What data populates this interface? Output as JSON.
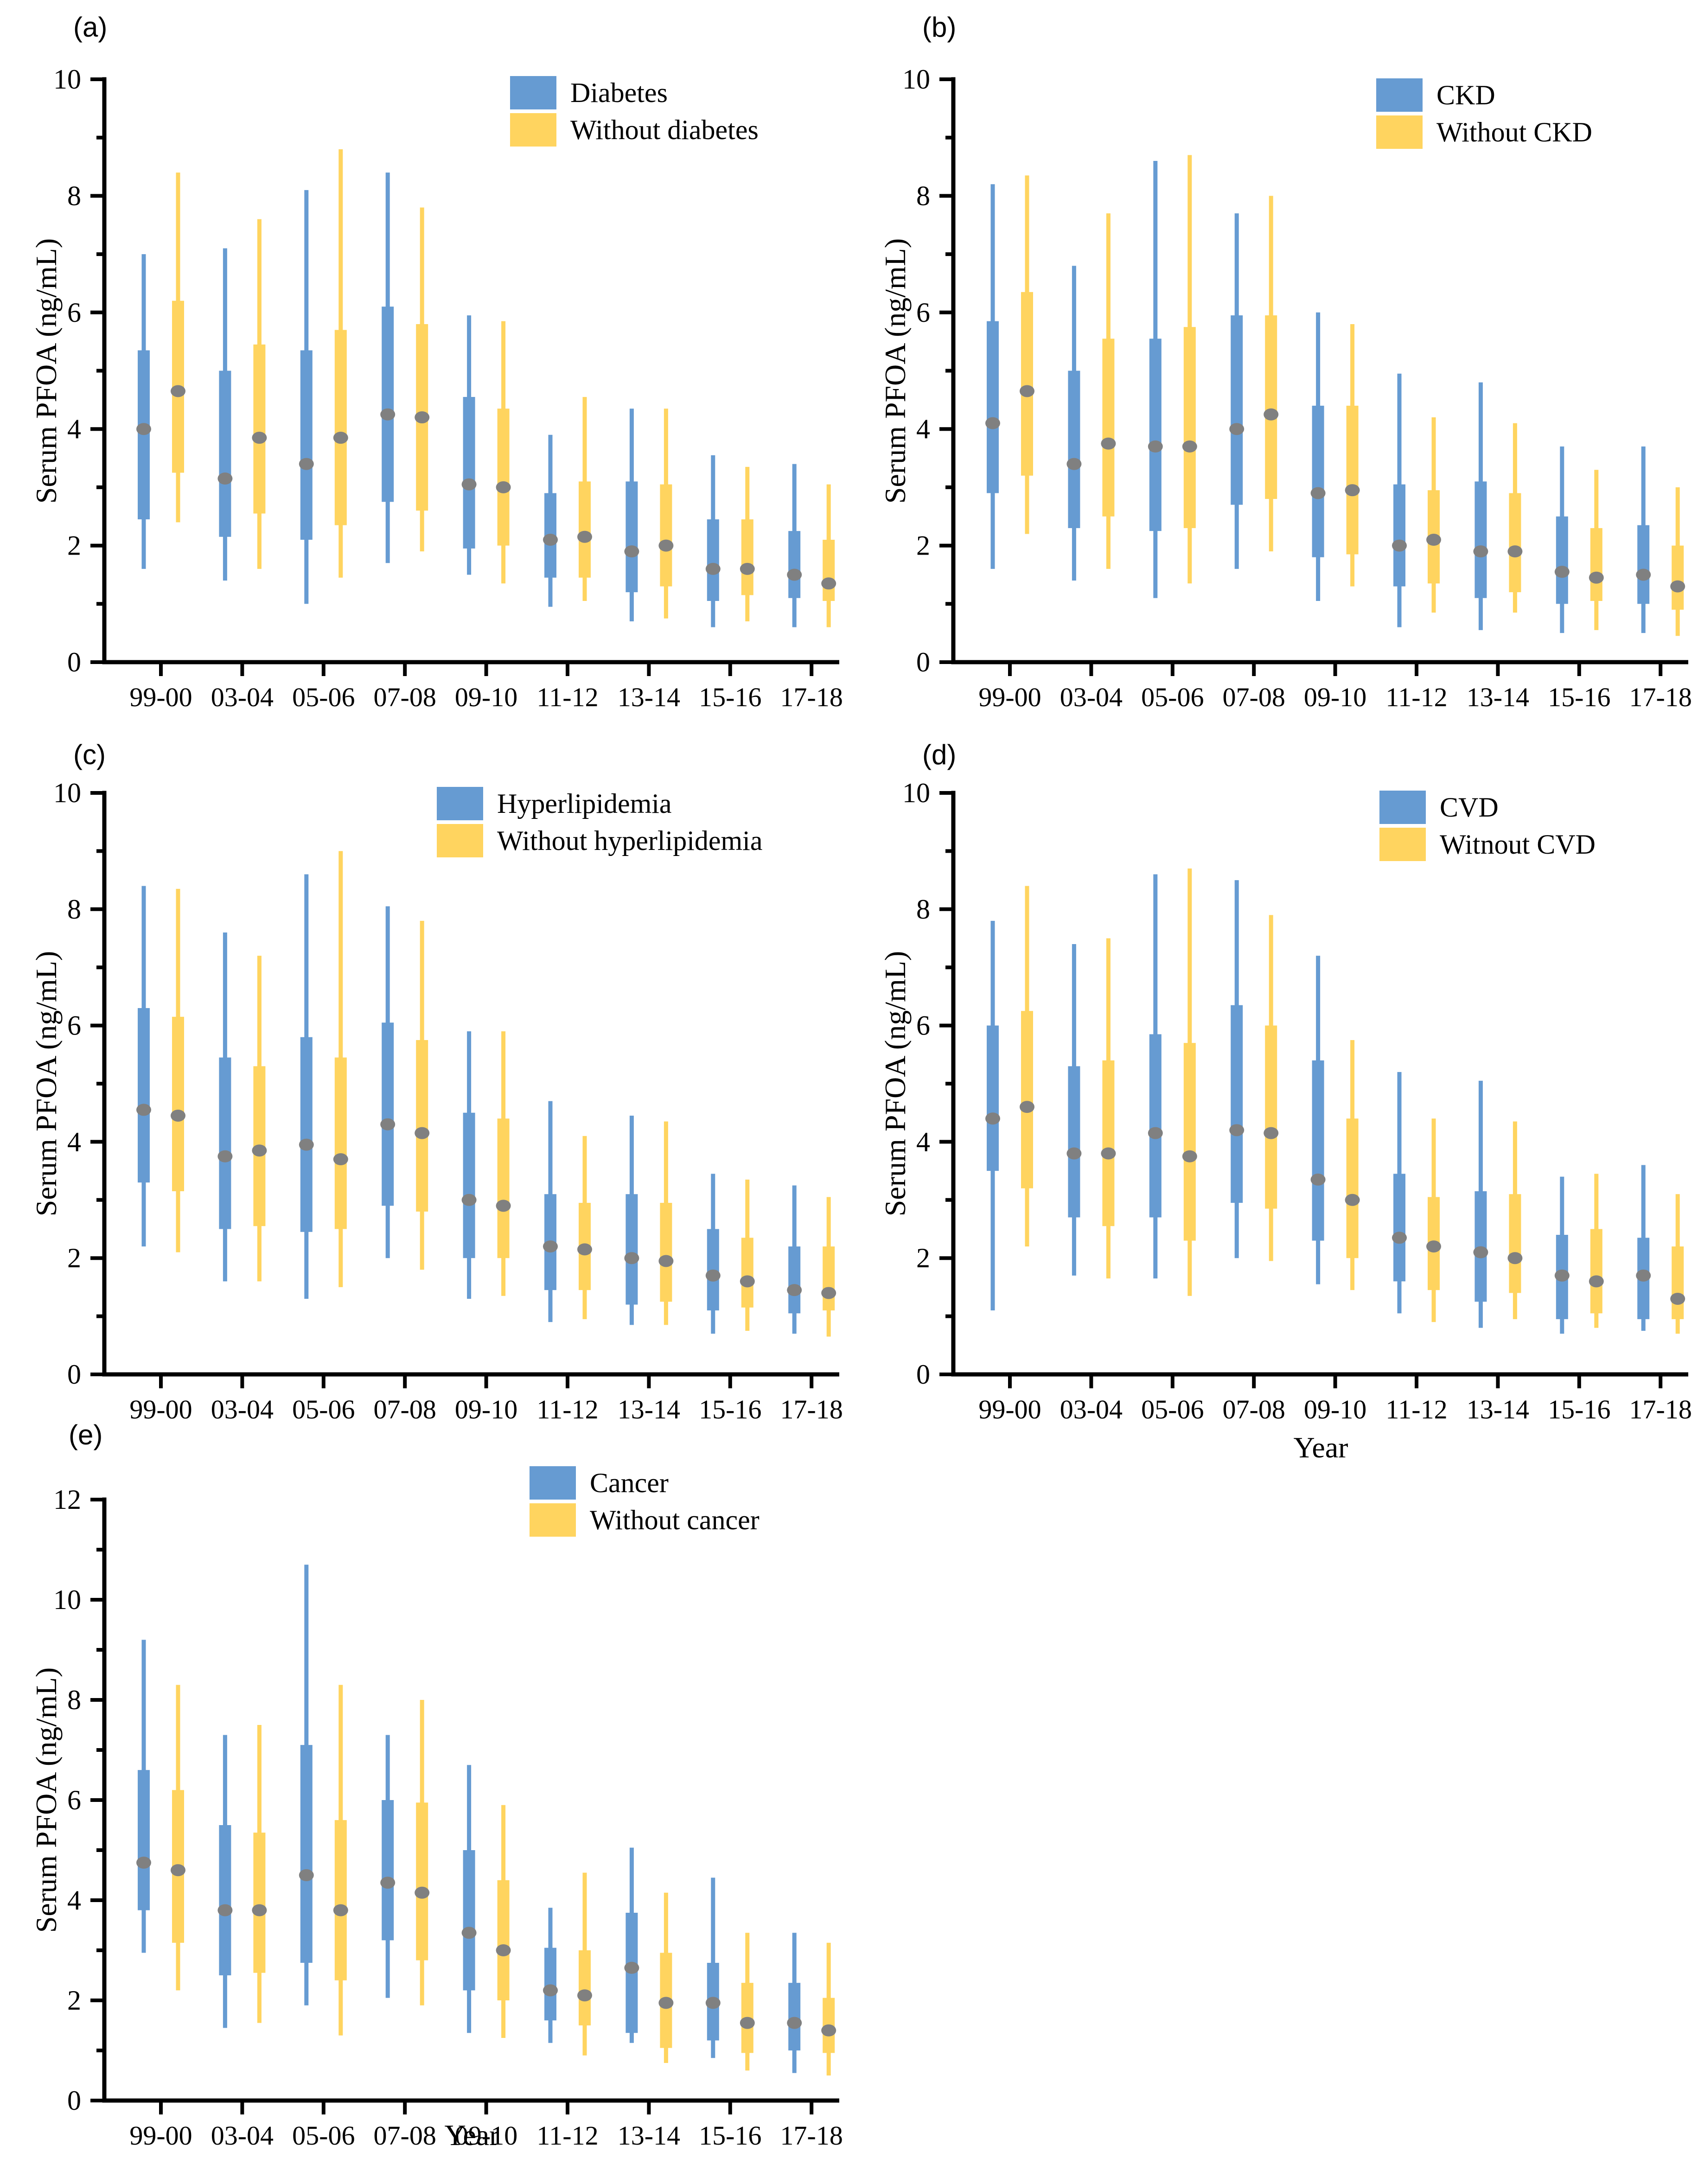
{
  "figure": {
    "background": "#ffffff",
    "axis_color": "#000000",
    "xlabel": "Year",
    "ylabel": "Serum PFOA (ng/mL)"
  },
  "chart_data": [
    {
      "type": "box",
      "panel_label": "(a)",
      "ylabel": "Serum PFOA (ng/mL)",
      "xlabel": "",
      "ylim": [
        0,
        10
      ],
      "yticks_major": [
        0,
        2,
        4,
        6,
        8,
        10
      ],
      "grid": "off",
      "legend_position": "top-right-inside",
      "categories": [
        "99-00",
        "03-04",
        "05-06",
        "07-08",
        "09-10",
        "11-12",
        "13-14",
        "15-16",
        "17-18"
      ],
      "marker_color": "#808080",
      "stats_order": [
        "whisker_low",
        "q1",
        "median_dot",
        "q3",
        "whisker_high"
      ],
      "series": [
        {
          "name": "Diabetes",
          "color": "#669BD2",
          "stats": [
            [
              1.6,
              2.45,
              4.0,
              5.35,
              7.0
            ],
            [
              1.4,
              2.15,
              3.15,
              5.0,
              7.1
            ],
            [
              1.0,
              2.1,
              3.4,
              5.35,
              8.1
            ],
            [
              1.7,
              2.75,
              4.25,
              6.1,
              8.4
            ],
            [
              1.5,
              1.95,
              3.05,
              4.55,
              5.95
            ],
            [
              0.95,
              1.45,
              2.1,
              2.9,
              3.9
            ],
            [
              0.7,
              1.2,
              1.9,
              3.1,
              4.35
            ],
            [
              0.6,
              1.05,
              1.6,
              2.45,
              3.55
            ],
            [
              0.6,
              1.1,
              1.5,
              2.25,
              3.4
            ]
          ]
        },
        {
          "name": "Without diabetes",
          "color": "#FFD45F",
          "stats": [
            [
              2.4,
              3.25,
              4.65,
              6.2,
              8.4
            ],
            [
              1.6,
              2.55,
              3.85,
              5.45,
              7.6
            ],
            [
              1.45,
              2.35,
              3.85,
              5.7,
              8.8
            ],
            [
              1.9,
              2.6,
              4.2,
              5.8,
              7.8
            ],
            [
              1.35,
              2.0,
              3.0,
              4.35,
              5.85
            ],
            [
              1.05,
              1.45,
              2.15,
              3.1,
              4.55
            ],
            [
              0.75,
              1.3,
              2.0,
              3.05,
              4.35
            ],
            [
              0.7,
              1.15,
              1.6,
              2.45,
              3.35
            ],
            [
              0.6,
              1.05,
              1.35,
              2.1,
              3.05
            ]
          ]
        }
      ]
    },
    {
      "type": "box",
      "panel_label": "(b)",
      "ylabel": "Serum PFOA (ng/mL)",
      "xlabel": "",
      "ylim": [
        0,
        10
      ],
      "yticks_major": [
        0,
        2,
        4,
        6,
        8,
        10
      ],
      "grid": "off",
      "legend_position": "top-right-inside",
      "categories": [
        "99-00",
        "03-04",
        "05-06",
        "07-08",
        "09-10",
        "11-12",
        "13-14",
        "15-16",
        "17-18"
      ],
      "marker_color": "#808080",
      "stats_order": [
        "whisker_low",
        "q1",
        "median_dot",
        "q3",
        "whisker_high"
      ],
      "series": [
        {
          "name": "CKD",
          "color": "#669BD2",
          "stats": [
            [
              1.6,
              2.9,
              4.1,
              5.85,
              8.2
            ],
            [
              1.4,
              2.3,
              3.4,
              5.0,
              6.8
            ],
            [
              1.1,
              2.25,
              3.7,
              5.55,
              8.6
            ],
            [
              1.6,
              2.7,
              4.0,
              5.95,
              7.7
            ],
            [
              1.05,
              1.8,
              2.9,
              4.4,
              6.0
            ],
            [
              0.6,
              1.3,
              2.0,
              3.05,
              4.95
            ],
            [
              0.55,
              1.1,
              1.9,
              3.1,
              4.8
            ],
            [
              0.5,
              1.0,
              1.55,
              2.5,
              3.7
            ],
            [
              0.5,
              1.0,
              1.5,
              2.35,
              3.7
            ]
          ]
        },
        {
          "name": "Without CKD",
          "color": "#FFD45F",
          "stats": [
            [
              2.2,
              3.2,
              4.65,
              6.35,
              8.35
            ],
            [
              1.6,
              2.5,
              3.75,
              5.55,
              7.7
            ],
            [
              1.35,
              2.3,
              3.7,
              5.75,
              8.7
            ],
            [
              1.9,
              2.8,
              4.25,
              5.95,
              8.0
            ],
            [
              1.3,
              1.85,
              2.95,
              4.4,
              5.8
            ],
            [
              0.85,
              1.35,
              2.1,
              2.95,
              4.2
            ],
            [
              0.85,
              1.2,
              1.9,
              2.9,
              4.1
            ],
            [
              0.55,
              1.05,
              1.45,
              2.3,
              3.3
            ],
            [
              0.45,
              0.9,
              1.3,
              2.0,
              3.0
            ]
          ]
        }
      ]
    },
    {
      "type": "box",
      "panel_label": "(c)",
      "ylabel": "Serum PFOA (ng/mL)",
      "xlabel": "",
      "ylim": [
        0,
        10
      ],
      "yticks_major": [
        0,
        2,
        4,
        6,
        8,
        10
      ],
      "grid": "off",
      "legend_position": "top-right-inside",
      "categories": [
        "99-00",
        "03-04",
        "05-06",
        "07-08",
        "09-10",
        "11-12",
        "13-14",
        "15-16",
        "17-18"
      ],
      "marker_color": "#808080",
      "stats_order": [
        "whisker_low",
        "q1",
        "median_dot",
        "q3",
        "whisker_high"
      ],
      "series": [
        {
          "name": "Hyperlipidemia",
          "color": "#669BD2",
          "stats": [
            [
              2.2,
              3.3,
              4.55,
              6.3,
              8.4
            ],
            [
              1.6,
              2.5,
              3.75,
              5.45,
              7.6
            ],
            [
              1.3,
              2.45,
              3.95,
              5.8,
              8.6
            ],
            [
              2.0,
              2.9,
              4.3,
              6.05,
              8.05
            ],
            [
              1.3,
              2.0,
              3.0,
              4.5,
              5.9
            ],
            [
              0.9,
              1.45,
              2.2,
              3.1,
              4.7
            ],
            [
              0.85,
              1.2,
              2.0,
              3.1,
              4.45
            ],
            [
              0.7,
              1.1,
              1.7,
              2.5,
              3.45
            ],
            [
              0.7,
              1.05,
              1.45,
              2.2,
              3.25
            ]
          ]
        },
        {
          "name": "Without hyperlipidemia",
          "color": "#FFD45F",
          "stats": [
            [
              2.1,
              3.15,
              4.45,
              6.15,
              8.35
            ],
            [
              1.6,
              2.55,
              3.85,
              5.3,
              7.2
            ],
            [
              1.5,
              2.5,
              3.7,
              5.45,
              9.0
            ],
            [
              1.8,
              2.8,
              4.15,
              5.75,
              7.8
            ],
            [
              1.35,
              2.0,
              2.9,
              4.4,
              5.9
            ],
            [
              0.95,
              1.45,
              2.15,
              2.95,
              4.1
            ],
            [
              0.85,
              1.25,
              1.95,
              2.95,
              4.35
            ],
            [
              0.75,
              1.15,
              1.6,
              2.35,
              3.35
            ],
            [
              0.65,
              1.1,
              1.4,
              2.2,
              3.05
            ]
          ]
        }
      ]
    },
    {
      "type": "box",
      "panel_label": "(d)",
      "ylabel": "Serum PFOA (ng/mL)",
      "xlabel": "Year",
      "ylim": [
        0,
        10
      ],
      "yticks_major": [
        0,
        2,
        4,
        6,
        8,
        10
      ],
      "grid": "off",
      "legend_position": "top-right-inside",
      "categories": [
        "99-00",
        "03-04",
        "05-06",
        "07-08",
        "09-10",
        "11-12",
        "13-14",
        "15-16",
        "17-18"
      ],
      "marker_color": "#808080",
      "stats_order": [
        "whisker_low",
        "q1",
        "median_dot",
        "q3",
        "whisker_high"
      ],
      "series": [
        {
          "name": "CVD",
          "color": "#669BD2",
          "stats": [
            [
              1.1,
              3.5,
              4.4,
              6.0,
              7.8
            ],
            [
              1.7,
              2.7,
              3.8,
              5.3,
              7.4
            ],
            [
              1.65,
              2.7,
              4.15,
              5.85,
              8.6
            ],
            [
              2.0,
              2.95,
              4.2,
              6.35,
              8.5
            ],
            [
              1.55,
              2.3,
              3.35,
              5.4,
              7.2
            ],
            [
              1.05,
              1.6,
              2.35,
              3.45,
              5.2
            ],
            [
              0.8,
              1.25,
              2.1,
              3.15,
              5.05
            ],
            [
              0.7,
              0.95,
              1.7,
              2.4,
              3.4
            ],
            [
              0.75,
              0.95,
              1.7,
              2.35,
              3.6
            ]
          ]
        },
        {
          "name": "Witnout CVD",
          "color": "#FFD45F",
          "stats": [
            [
              2.2,
              3.2,
              4.6,
              6.25,
              8.4
            ],
            [
              1.65,
              2.55,
              3.8,
              5.4,
              7.5
            ],
            [
              1.35,
              2.3,
              3.75,
              5.7,
              8.7
            ],
            [
              1.95,
              2.85,
              4.15,
              6.0,
              7.9
            ],
            [
              1.45,
              2.0,
              3.0,
              4.4,
              5.75
            ],
            [
              0.9,
              1.45,
              2.2,
              3.05,
              4.4
            ],
            [
              0.95,
              1.4,
              2.0,
              3.1,
              4.35
            ],
            [
              0.8,
              1.05,
              1.6,
              2.5,
              3.45
            ],
            [
              0.7,
              0.95,
              1.3,
              2.2,
              3.1
            ]
          ]
        }
      ]
    },
    {
      "type": "box",
      "panel_label": "(e)",
      "ylabel": "Serum PFOA (ng/mL)",
      "xlabel": "Year",
      "ylim": [
        0,
        12
      ],
      "yticks_major": [
        0,
        2,
        4,
        6,
        8,
        10,
        12
      ],
      "grid": "off",
      "legend_position": "top-right-inside",
      "categories": [
        "99-00",
        "03-04",
        "05-06",
        "07-08",
        "09-10",
        "11-12",
        "13-14",
        "15-16",
        "17-18"
      ],
      "marker_color": "#808080",
      "stats_order": [
        "whisker_low",
        "q1",
        "median_dot",
        "q3",
        "whisker_high"
      ],
      "series": [
        {
          "name": "Cancer",
          "color": "#669BD2",
          "stats": [
            [
              2.95,
              3.8,
              4.75,
              6.6,
              9.2
            ],
            [
              1.45,
              2.5,
              3.8,
              5.5,
              7.3
            ],
            [
              1.9,
              2.75,
              4.5,
              7.1,
              10.7
            ],
            [
              2.05,
              3.2,
              4.35,
              6.0,
              7.3
            ],
            [
              1.35,
              2.2,
              3.35,
              5.0,
              6.7
            ],
            [
              1.15,
              1.6,
              2.2,
              3.05,
              3.85
            ],
            [
              1.15,
              1.35,
              2.65,
              3.75,
              5.05
            ],
            [
              0.85,
              1.2,
              1.95,
              2.75,
              4.45
            ],
            [
              0.55,
              1.0,
              1.55,
              2.35,
              3.35
            ]
          ]
        },
        {
          "name": "Without cancer",
          "color": "#FFD45F",
          "stats": [
            [
              2.2,
              3.15,
              4.6,
              6.2,
              8.3
            ],
            [
              1.55,
              2.55,
              3.8,
              5.35,
              7.5
            ],
            [
              1.3,
              2.4,
              3.8,
              5.6,
              8.3
            ],
            [
              1.9,
              2.8,
              4.15,
              5.95,
              8.0
            ],
            [
              1.25,
              2.0,
              3.0,
              4.4,
              5.9
            ],
            [
              0.9,
              1.5,
              2.1,
              3.0,
              4.55
            ],
            [
              0.75,
              1.05,
              1.95,
              2.95,
              4.15
            ],
            [
              0.6,
              0.95,
              1.55,
              2.35,
              3.35
            ],
            [
              0.5,
              0.95,
              1.4,
              2.05,
              3.15
            ]
          ]
        }
      ]
    }
  ]
}
